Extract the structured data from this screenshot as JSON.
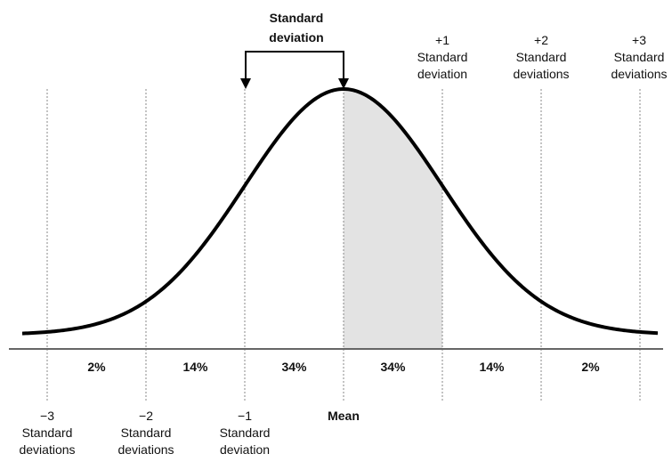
{
  "title_lines": [
    "Standard",
    "deviation"
  ],
  "mean_label": "Mean",
  "upper_markers": [
    [
      "+1",
      "Standard",
      "deviation"
    ],
    [
      "+2",
      "Standard",
      "deviations"
    ],
    [
      "+3",
      "Standard",
      "deviations"
    ]
  ],
  "lower_markers": [
    [
      "−3",
      "Standard",
      "deviations"
    ],
    [
      "−2",
      "Standard",
      "deviations"
    ],
    [
      "−1",
      "Standard",
      "deviation"
    ]
  ],
  "regions": [
    "2%",
    "14%",
    "34%",
    "34%",
    "14%",
    "2%"
  ]
}
